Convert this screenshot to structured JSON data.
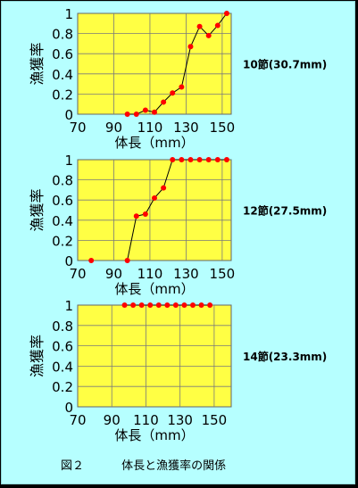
{
  "figure": {
    "number": "図２",
    "title": "体長と漁獲率の関係"
  },
  "colors": {
    "background": "#b6ffff",
    "plot_area": "#ffff44",
    "grid": "#7a7a7a",
    "marker": "#ff0000",
    "line": "#000000"
  },
  "chart_data": [
    {
      "type": "line",
      "panel_label": "10節(30.7mm)",
      "xlabel": "体長（mm）",
      "ylabel": "漁獲率",
      "xlim": [
        70,
        155
      ],
      "ylim": [
        0,
        1
      ],
      "x_ticks": [
        70,
        90,
        110,
        130,
        150
      ],
      "y_ticks": [
        0,
        0.2,
        0.4,
        0.6,
        0.8,
        1
      ],
      "y_tick_labels": [
        "0",
        "0.2",
        "0.4",
        "0.6",
        "0.8",
        "1"
      ],
      "grid": true,
      "points": [
        {
          "x": 97.5,
          "y": 0.0
        },
        {
          "x": 102.5,
          "y": 0.0
        },
        {
          "x": 107.5,
          "y": 0.04
        },
        {
          "x": 112.5,
          "y": 0.02
        },
        {
          "x": 117.5,
          "y": 0.12
        },
        {
          "x": 122.5,
          "y": 0.21
        },
        {
          "x": 127.5,
          "y": 0.27
        },
        {
          "x": 132.5,
          "y": 0.67
        },
        {
          "x": 137.5,
          "y": 0.87
        },
        {
          "x": 142.5,
          "y": 0.78
        },
        {
          "x": 147.5,
          "y": 0.88
        },
        {
          "x": 152.5,
          "y": 1.0
        }
      ],
      "line_start_index": 0
    },
    {
      "type": "line",
      "panel_label": "12節(27.5mm)",
      "xlabel": "体長（mm）",
      "ylabel": "漁獲率",
      "xlim": [
        70,
        155
      ],
      "ylim": [
        0,
        1
      ],
      "x_ticks": [
        70,
        90,
        110,
        130,
        150
      ],
      "y_ticks": [
        0,
        0.2,
        0.4,
        0.6,
        0.8,
        1
      ],
      "y_tick_labels": [
        "0",
        "0.2",
        "0.4",
        "0.6",
        "0.8",
        "1"
      ],
      "grid": true,
      "points": [
        {
          "x": 77.5,
          "y": 0.0
        },
        {
          "x": 97.5,
          "y": 0.0
        },
        {
          "x": 102.5,
          "y": 0.44
        },
        {
          "x": 107.5,
          "y": 0.46
        },
        {
          "x": 112.5,
          "y": 0.62
        },
        {
          "x": 117.5,
          "y": 0.72
        },
        {
          "x": 122.5,
          "y": 1.0
        },
        {
          "x": 127.5,
          "y": 1.0
        },
        {
          "x": 132.5,
          "y": 1.0
        },
        {
          "x": 137.5,
          "y": 1.0
        },
        {
          "x": 142.5,
          "y": 1.0
        },
        {
          "x": 147.5,
          "y": 1.0
        },
        {
          "x": 152.5,
          "y": 1.0
        }
      ],
      "line_start_index": 1
    },
    {
      "type": "line",
      "panel_label": "14節(23.3mm)",
      "xlabel": "体長（mm）",
      "ylabel": "漁獲率",
      "xlim": [
        70,
        160
      ],
      "ylim": [
        0,
        1
      ],
      "x_ticks": [
        70,
        90,
        110,
        130,
        150
      ],
      "y_ticks": [
        0,
        0.2,
        0.4,
        0.6,
        0.8,
        1
      ],
      "y_tick_labels": [
        "0",
        "0.2",
        "0.4",
        "0.6",
        "0.8",
        "1"
      ],
      "grid": true,
      "points": [
        {
          "x": 97.5,
          "y": 1.0
        },
        {
          "x": 102.5,
          "y": 1.0
        },
        {
          "x": 107.5,
          "y": 1.0
        },
        {
          "x": 112.5,
          "y": 1.0
        },
        {
          "x": 117.5,
          "y": 1.0
        },
        {
          "x": 122.5,
          "y": 1.0
        },
        {
          "x": 127.5,
          "y": 1.0
        },
        {
          "x": 132.5,
          "y": 1.0
        },
        {
          "x": 137.5,
          "y": 1.0
        },
        {
          "x": 142.5,
          "y": 1.0
        },
        {
          "x": 147.5,
          "y": 1.0
        }
      ],
      "line_start_index": 0
    }
  ]
}
